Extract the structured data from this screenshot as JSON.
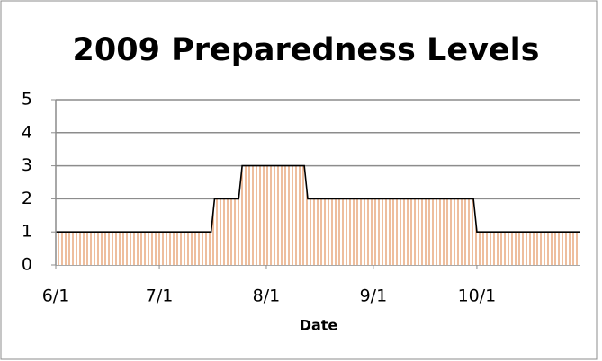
{
  "chart_data": {
    "type": "area",
    "title": "2009 Preparedness Levels",
    "x_label": "Date",
    "x": [
      0,
      45,
      46,
      53,
      54,
      72,
      73,
      121,
      122,
      152
    ],
    "values": [
      1,
      1,
      2,
      2,
      3,
      3,
      2,
      2,
      1,
      1
    ],
    "color": "#e59a6a",
    "xlim": [
      0,
      152
    ],
    "xticks": [
      {
        "value": 0,
        "label": "6/1"
      },
      {
        "value": 30,
        "label": "7/1"
      },
      {
        "value": 61,
        "label": "8/1"
      },
      {
        "value": 92,
        "label": "9/1"
      },
      {
        "value": 122,
        "label": "10/1"
      }
    ],
    "ylim": [
      0,
      5
    ],
    "yticks": [
      0,
      1,
      2,
      3,
      4,
      5
    ],
    "grid": true
  }
}
